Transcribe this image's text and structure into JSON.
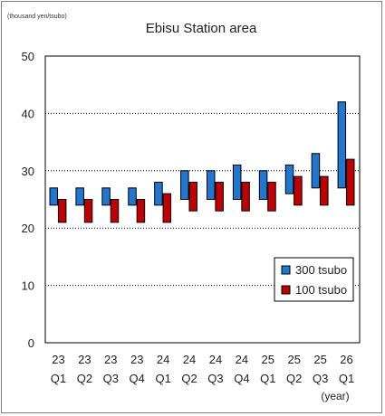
{
  "chart_data": {
    "type": "floating-bar",
    "title": "Ebisu Station area",
    "unit_label": "(thousand yen/tsubo)",
    "xlabel": "(year)",
    "ylim": [
      0,
      50
    ],
    "y_ticks": [
      0,
      10,
      20,
      30,
      40,
      50
    ],
    "grid": true,
    "legend_position": "lower-right",
    "categories": [
      {
        "year": "23",
        "quarter": "Q1"
      },
      {
        "year": "23",
        "quarter": "Q2"
      },
      {
        "year": "23",
        "quarter": "Q3"
      },
      {
        "year": "23",
        "quarter": "Q4"
      },
      {
        "year": "24",
        "quarter": "Q1"
      },
      {
        "year": "24",
        "quarter": "Q2"
      },
      {
        "year": "24",
        "quarter": "Q3"
      },
      {
        "year": "24",
        "quarter": "Q4"
      },
      {
        "year": "25",
        "quarter": "Q1"
      },
      {
        "year": "25",
        "quarter": "Q2"
      },
      {
        "year": "25",
        "quarter": "Q3"
      },
      {
        "year": "26",
        "quarter": "Q1"
      }
    ],
    "series": [
      {
        "name": "300 tsubo",
        "color": "#1f77d0",
        "ranges": [
          [
            24,
            27
          ],
          [
            24,
            27
          ],
          [
            24,
            27
          ],
          [
            24,
            27
          ],
          [
            24,
            28
          ],
          [
            25,
            30
          ],
          [
            25,
            30
          ],
          [
            25,
            31
          ],
          [
            25,
            30
          ],
          [
            26,
            31
          ],
          [
            27,
            33
          ],
          [
            27,
            42
          ]
        ]
      },
      {
        "name": "100 tsubo",
        "color": "#c00000",
        "ranges": [
          [
            21,
            25
          ],
          [
            21,
            25
          ],
          [
            21,
            25
          ],
          [
            21,
            25
          ],
          [
            21,
            26
          ],
          [
            23,
            28
          ],
          [
            23,
            28
          ],
          [
            23,
            28
          ],
          [
            23,
            28
          ],
          [
            24,
            29
          ],
          [
            24,
            29
          ],
          [
            24,
            32
          ]
        ]
      }
    ]
  }
}
